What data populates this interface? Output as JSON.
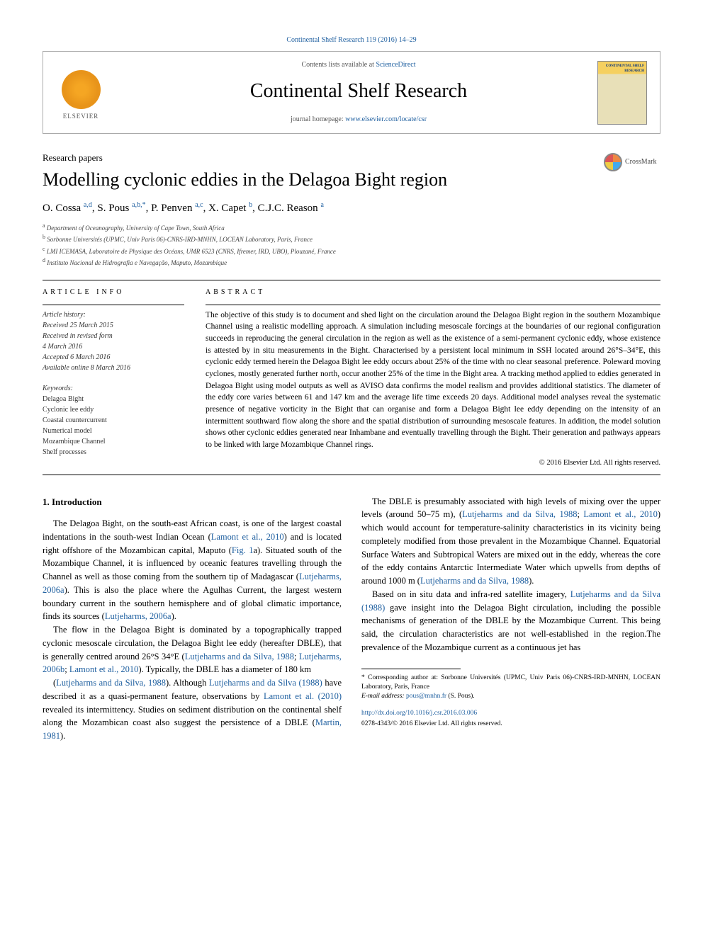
{
  "citation": "Continental Shelf Research 119 (2016) 14–29",
  "header": {
    "contents_prefix": "Contents lists available at ",
    "contents_link": "ScienceDirect",
    "journal_name": "Continental Shelf Research",
    "homepage_prefix": "journal homepage: ",
    "homepage_url": "www.elsevier.com/locate/csr",
    "publisher_name": "ELSEVIER",
    "cover_title": "CONTINENTAL SHELF RESEARCH"
  },
  "article": {
    "type": "Research papers",
    "title": "Modelling cyclonic eddies in the Delagoa Bight region",
    "crossmark_label": "CrossMark",
    "authors_html": "O. Cossa <sup>a,d</sup>, S. Pous <sup>a,b,*</sup>, P. Penven <sup>a,c</sup>, X. Capet <sup>b</sup>, C.J.C. Reason <sup>a</sup>",
    "affiliations": [
      {
        "sup": "a",
        "text": "Department of Oceanography, University of Cape Town, South Africa"
      },
      {
        "sup": "b",
        "text": "Sorbonne Universités (UPMC, Univ Paris 06)-CNRS-IRD-MNHN, LOCEAN Laboratory, Paris, France"
      },
      {
        "sup": "c",
        "text": "LMI ICEMASA, Laboratoire de Physique des Océans, UMR 6523 (CNRS, Ifremer, IRD, UBO), Plouzané, France"
      },
      {
        "sup": "d",
        "text": "Instituto Nacional de Hidrografia e Navegação, Maputo, Mozambique"
      }
    ]
  },
  "info": {
    "label": "article info",
    "history_label": "Article history:",
    "history": [
      "Received 25 March 2015",
      "Received in revised form",
      "4 March 2016",
      "Accepted 6 March 2016",
      "Available online 8 March 2016"
    ],
    "keywords_label": "Keywords:",
    "keywords": [
      "Delagoa Bight",
      "Cyclonic lee eddy",
      "Coastal countercurrent",
      "Numerical model",
      "Mozambique Channel",
      "Shelf processes"
    ]
  },
  "abstract": {
    "label": "abstract",
    "text": "The objective of this study is to document and shed light on the circulation around the Delagoa Bight region in the southern Mozambique Channel using a realistic modelling approach. A simulation including mesoscale forcings at the boundaries of our regional configuration succeeds in reproducing the general circulation in the region as well as the existence of a semi-permanent cyclonic eddy, whose existence is attested by in situ measurements in the Bight. Characterised by a persistent local minimum in SSH located around 26°S–34°E, this cyclonic eddy termed herein the Delagoa Bight lee eddy occurs about 25% of the time with no clear seasonal preference. Poleward moving cyclones, mostly generated further north, occur another 25% of the time in the Bight area. A tracking method applied to eddies generated in Delagoa Bight using model outputs as well as AVISO data confirms the model realism and provides additional statistics. The diameter of the eddy core varies between 61 and 147 km and the average life time exceeds 20 days. Additional model analyses reveal the systematic presence of negative vorticity in the Bight that can organise and form a Delagoa Bight lee eddy depending on the intensity of an intermittent southward flow along the shore and the spatial distribution of surrounding mesoscale features. In addition, the model solution shows other cyclonic eddies generated near Inhambane and eventually travelling through the Bight. Their generation and pathways appears to be linked with large Mozambique Channel rings.",
    "copyright": "© 2016 Elsevier Ltd. All rights reserved."
  },
  "body": {
    "heading": "1. Introduction",
    "paragraphs": [
      "The Delagoa Bight, on the south-east African coast, is one of the largest coastal indentations in the south-west Indian Ocean (<a>Lamont et al., 2010</a>) and is located right offshore of the Mozambican capital, Maputo (<a>Fig. 1</a>a). Situated south of the Mozambique Channel, it is influenced by oceanic features travelling through the Channel as well as those coming from the southern tip of Madagascar (<a>Lutjeharms, 2006a</a>). This is also the place where the Agulhas Current, the largest western boundary current in the southern hemisphere and of global climatic importance, finds its sources (<a>Lutjeharms, 2006a</a>).",
      "The flow in the Delagoa Bight is dominated by a topographically trapped cyclonic mesoscale circulation, the Delagoa Bight lee eddy (hereafter DBLE), that is generally centred around 26°S 34°E (<a>Lutjeharms and da Silva, 1988</a>; <a>Lutjeharms, 2006b</a>; <a>Lamont et al., 2010</a>). Typically, the DBLE has a diameter of 180 km",
      "(<a>Lutjeharms and da Silva, 1988</a>). Although <a>Lutjeharms and da Silva (1988)</a> have described it as a quasi-permanent feature, observations by <a>Lamont et al. (2010)</a> revealed its intermittency. Studies on sediment distribution on the continental shelf along the Mozambican coast also suggest the persistence of a DBLE (<a>Martin, 1981</a>).",
      "The DBLE is presumably associated with high levels of mixing over the upper levels (around 50–75 m), (<a>Lutjeharms and da Silva, 1988</a>; <a>Lamont et al., 2010</a>) which would account for temperature-salinity characteristics in its vicinity being completely modified from those prevalent in the Mozambique Channel. Equatorial Surface Waters and Subtropical Waters are mixed out in the eddy, whereas the core of the eddy contains Antarctic Intermediate Water which upwells from depths of around 1000 m (<a>Lutjeharms and da Silva, 1988</a>).",
      "Based on in situ data and infra-red satellite imagery, <a>Lutjeharms and da Silva (1988)</a> gave insight into the Delagoa Bight circulation, including the possible mechanisms of generation of the DBLE by the Mozambique Current. This being said, the circulation characteristics are not well-established in the region.The prevalence of the Mozambique current as a continuous jet has"
    ]
  },
  "footnotes": {
    "corr": "* Corresponding author at: Sorbonne Universités (UPMC, Univ Paris 06)-CNRS-IRD-MNHN, LOCEAN Laboratory, Paris, France",
    "email_label": "E-mail address: ",
    "email": "pous@mnhn.fr",
    "email_suffix": " (S. Pous)."
  },
  "doi": {
    "url": "http://dx.doi.org/10.1016/j.csr.2016.03.006",
    "issn_line": "0278-4343/© 2016 Elsevier Ltd. All rights reserved."
  },
  "colors": {
    "link": "#2060a0",
    "text": "#000000",
    "muted": "#555555"
  }
}
